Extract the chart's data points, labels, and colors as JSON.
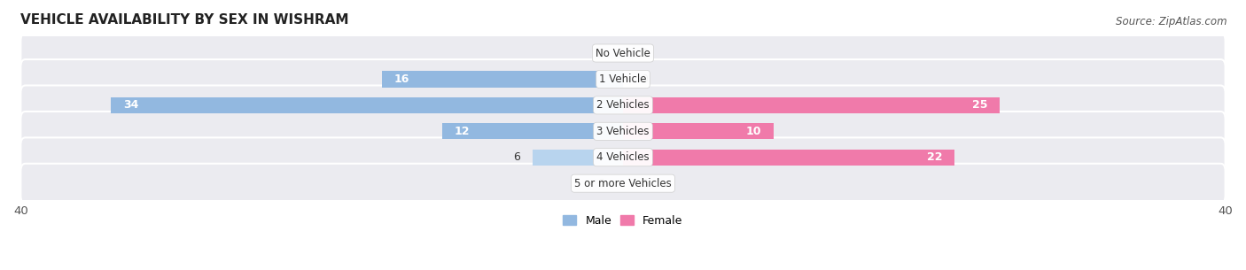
{
  "title": "VEHICLE AVAILABILITY BY SEX IN WISHRAM",
  "source": "Source: ZipAtlas.com",
  "categories": [
    "No Vehicle",
    "1 Vehicle",
    "2 Vehicles",
    "3 Vehicles",
    "4 Vehicles",
    "5 or more Vehicles"
  ],
  "male_values": [
    0,
    16,
    34,
    12,
    6,
    0
  ],
  "female_values": [
    0,
    0,
    25,
    10,
    22,
    0
  ],
  "male_color": "#92b8e0",
  "female_color": "#f07aaa",
  "male_color_light": "#b8d4ee",
  "female_color_light": "#f0b0cc",
  "male_label": "Male",
  "female_label": "Female",
  "xlim": 40,
  "background_color": "#ffffff",
  "bar_bg_color": "#ebebf0",
  "title_fontsize": 11,
  "source_fontsize": 8.5,
  "label_fontsize": 9,
  "tick_fontsize": 9.5
}
